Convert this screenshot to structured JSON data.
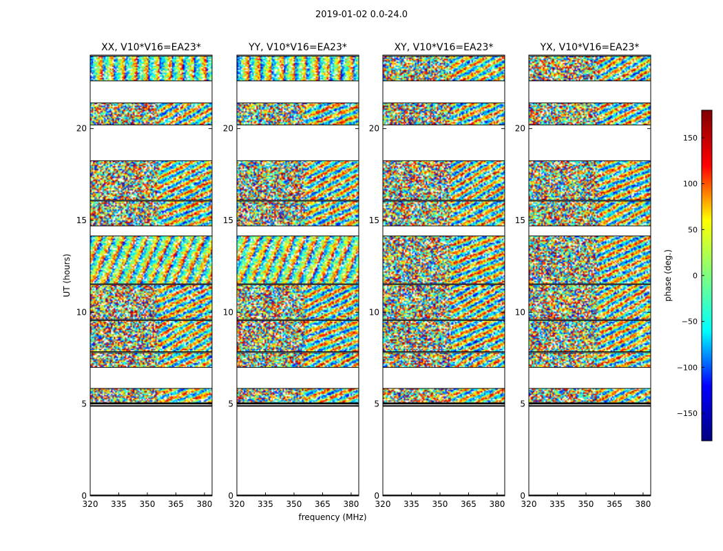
{
  "figure": {
    "suptitle": "2019-01-02 0.0-24.0"
  },
  "chart_data": {
    "type": "heatmap",
    "x_axis": {
      "label": "frequency (MHz)",
      "range": [
        320,
        384
      ],
      "ticks": [
        320,
        335,
        350,
        365,
        380
      ],
      "tick_labels": [
        "320",
        "335",
        "350",
        "365",
        "380"
      ]
    },
    "y_axis": {
      "label": "UT (hours)",
      "range": [
        0,
        24
      ],
      "ticks": [
        0,
        5,
        10,
        15,
        20
      ],
      "tick_labels": [
        "0",
        "5",
        "10",
        "15",
        "20"
      ]
    },
    "colorbar": {
      "label": "phase (deg.)",
      "range": [
        -180,
        180
      ],
      "ticks": [
        -150,
        -100,
        -50,
        0,
        50,
        100,
        150
      ],
      "tick_labels": [
        "−150",
        "−100",
        "−50",
        "0",
        "50",
        "100",
        "150"
      ],
      "colormap": "jet",
      "colors": [
        "#00007f",
        "#0000ff",
        "#00ffff",
        "#7fff7f",
        "#ffff00",
        "#ff0000",
        "#7f0000"
      ]
    },
    "panels": [
      {
        "title": "XX, V10*V16=EA23*",
        "pattern": "fringes-strong"
      },
      {
        "title": "YY, V10*V16=EA23*",
        "pattern": "fringes-strong"
      },
      {
        "title": "XY, V10*V16=EA23*",
        "pattern": "noise-weak"
      },
      {
        "title": "YX, V10*V16=EA23*",
        "pattern": "noise-weak"
      }
    ],
    "data_blocks_ut_hours": [
      [
        5.0,
        5.85
      ],
      [
        7.0,
        7.8
      ],
      [
        7.85,
        9.55
      ],
      [
        9.6,
        11.5
      ],
      [
        11.55,
        14.15
      ],
      [
        14.7,
        16.05
      ],
      [
        16.1,
        18.25
      ],
      [
        20.2,
        21.4
      ],
      [
        22.6,
        23.95
      ]
    ],
    "line_rows_ut_hours": [
      4.9,
      5.05,
      0.03
    ]
  }
}
